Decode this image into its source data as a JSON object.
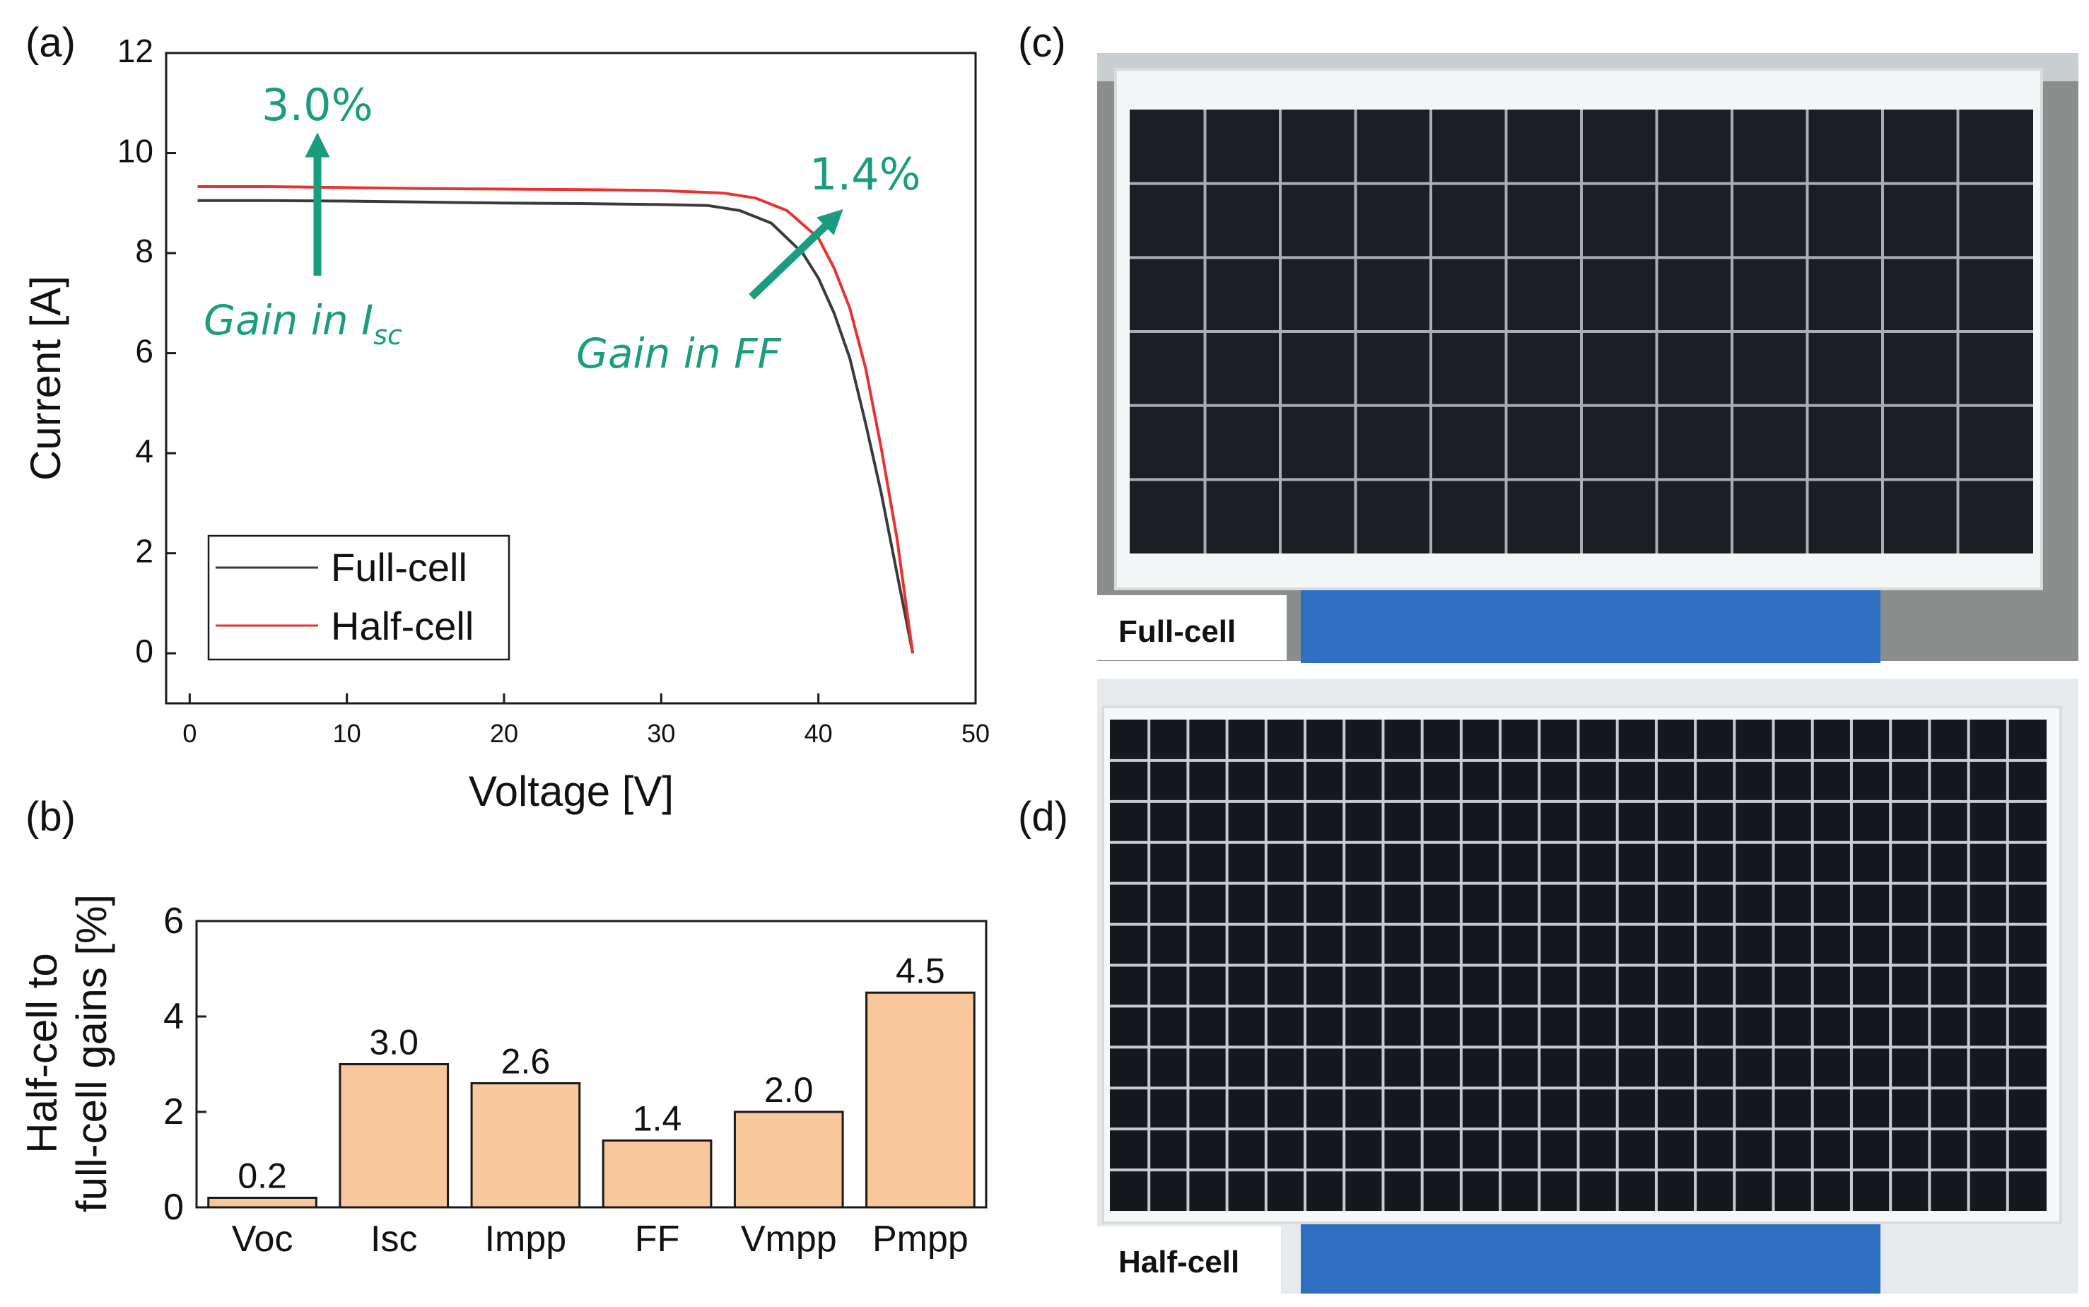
{
  "panels": {
    "a": "(a)",
    "b": "(b)",
    "c": "(c)",
    "d": "(d)"
  },
  "colors": {
    "full_cell": "#3a3a3a",
    "half_cell": "#e8322e",
    "annotation": "#1a9c7e",
    "bar_fill": "#f8c79b",
    "bar_edge": "#1a1a1a"
  },
  "chart_data": [
    {
      "type": "line",
      "panel": "(a)",
      "xlabel": "Voltage [V]",
      "ylabel": "Current [A]",
      "xlim": [
        -1.5,
        50
      ],
      "ylim": [
        -1,
        12
      ],
      "xticks": [
        0,
        10,
        20,
        30,
        40,
        50
      ],
      "yticks": [
        0,
        2,
        4,
        6,
        8,
        10,
        12
      ],
      "legend_position": "bottom-left",
      "series": [
        {
          "name": "Full-cell",
          "color": "#3a3a3a",
          "x": [
            0.5,
            5,
            10,
            15,
            20,
            25,
            30,
            33,
            35,
            37,
            39,
            40,
            41,
            42,
            43,
            44,
            45,
            46
          ],
          "y": [
            9.05,
            9.05,
            9.04,
            9.02,
            9.0,
            8.99,
            8.97,
            8.95,
            8.85,
            8.6,
            8.0,
            7.5,
            6.8,
            5.9,
            4.6,
            3.2,
            1.6,
            0.0
          ]
        },
        {
          "name": "Half-cell",
          "color": "#e8322e",
          "x": [
            0.5,
            5,
            10,
            15,
            20,
            25,
            30,
            34,
            36,
            38,
            40,
            41,
            42,
            43,
            44,
            45,
            46
          ],
          "y": [
            9.33,
            9.33,
            9.31,
            9.29,
            9.28,
            9.27,
            9.25,
            9.2,
            9.1,
            8.85,
            8.3,
            7.7,
            6.9,
            5.7,
            4.1,
            2.3,
            0.0
          ]
        }
      ],
      "annotations": {
        "isc_gain_value": "3.0%",
        "isc_gain_text": "Gain in I",
        "isc_gain_sub": "sc",
        "ff_gain_value": "1.4%",
        "ff_gain_text": "Gain in FF"
      }
    },
    {
      "type": "bar",
      "panel": "(b)",
      "ylabel_line1": "Half-cell to",
      "ylabel_line2": "full-cell gains [%]",
      "categories": [
        "Voc",
        "Isc",
        "Impp",
        "FF",
        "Vmpp",
        "Pmpp"
      ],
      "values": [
        0.2,
        3.0,
        2.6,
        1.4,
        2.0,
        4.5
      ],
      "value_labels": [
        "0.2",
        "3.0",
        "2.6",
        "1.4",
        "2.0",
        "4.5"
      ],
      "ylim": [
        0,
        6
      ],
      "yticks": [
        0,
        2,
        4,
        6
      ]
    }
  ],
  "photos": {
    "top_caption": "Full-cell",
    "bottom_caption": "Half-cell"
  }
}
